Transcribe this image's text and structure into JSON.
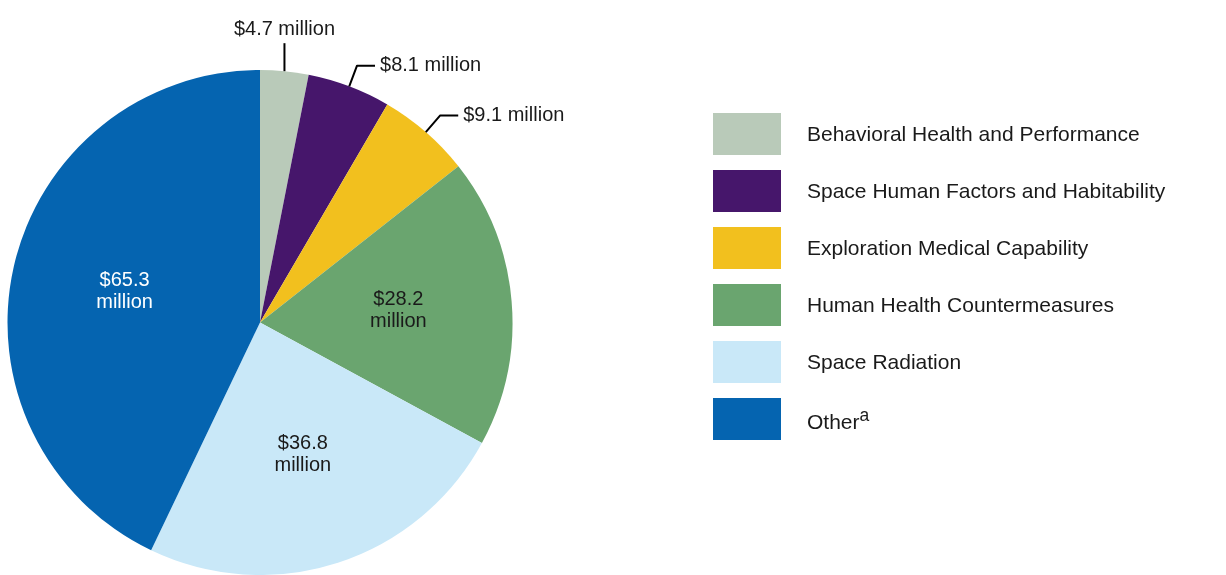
{
  "chart_data": {
    "type": "pie",
    "categories": [
      "Behavioral Health and Performance",
      "Space Human Factors and Habitability",
      "Exploration Medical Capability",
      "Human Health Countermeasures",
      "Space Radiation",
      "Other$^{a}$"
    ],
    "values": [
      4.7,
      8.1,
      9.1,
      28.2,
      36.8,
      65.3
    ],
    "colors": [
      "#b9cab9",
      "#46166b",
      "#f2c01e",
      "#6aa56f",
      "#c9e8f8",
      "#0564b0"
    ],
    "value_labels": [
      "$4.7 million",
      "$8.1 million",
      "$9.1 million",
      "$28.2 million",
      "$36.8 million",
      "$65.3 million"
    ],
    "legend": "right"
  }
}
